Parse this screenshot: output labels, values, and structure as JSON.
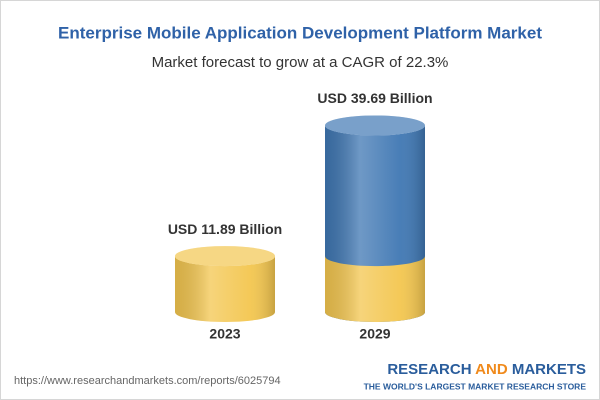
{
  "chart_data": {
    "type": "cylinder",
    "title": "Enterprise Mobile Application Development Platform Market",
    "subtitle": "Market forecast to grow at a CAGR of 22.3%",
    "categories": [
      "2023",
      "2029"
    ],
    "values": [
      11.89,
      39.69
    ],
    "value_labels": [
      "USD 11.89 Billion",
      "USD 39.69 Billion"
    ],
    "colors": [
      "#f3c64f",
      "#3f77b3"
    ]
  },
  "footer": {
    "url": "https://www.researchandmarkets.com/reports/6025794",
    "brand": [
      "RESEARCH",
      "AND",
      "MARKETS"
    ],
    "tagline": "THE WORLD'S LARGEST MARKET RESEARCH STORE"
  }
}
